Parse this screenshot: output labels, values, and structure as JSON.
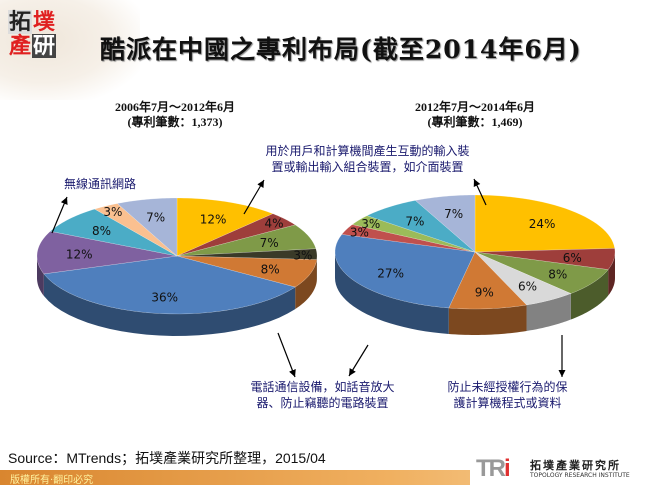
{
  "header": {
    "logo_chars": [
      "拓",
      "墣",
      "產",
      "研"
    ],
    "title": "酷派在中國之專利布局(截至2014年6月)"
  },
  "chart_data": [
    {
      "type": "pie",
      "subtitle_line1": "2006年7月～2012年6月",
      "subtitle_line2": "(專利筆數：1,373)",
      "values": [
        12,
        4,
        7,
        3,
        8,
        36,
        12,
        8,
        3,
        7
      ],
      "labels": [
        "12%",
        "4%",
        "7%",
        "3%",
        "8%",
        "36%",
        "12%",
        "8%",
        "3%",
        "7%"
      ],
      "colors": [
        "#FFC000",
        "#9E3E3B",
        "#7F9A48",
        "#3A3A28",
        "#D07934",
        "#4F7FBD",
        "#7F61A0",
        "#4BACC6",
        "#FAC090",
        "#A6B5D8"
      ]
    },
    {
      "type": "pie",
      "subtitle_line1": "2012年7月～2014年6月",
      "subtitle_line2": "(專利筆數：1,469)",
      "values": [
        24,
        6,
        8,
        6,
        9,
        27,
        3,
        3,
        7,
        7
      ],
      "labels": [
        "24%",
        "6%",
        "8%",
        "6%",
        "9%",
        "27%",
        "3%",
        "3%",
        "7%",
        "7%"
      ],
      "colors": [
        "#FFC000",
        "#9E3E3B",
        "#7F9A48",
        "#D9D9D9",
        "#D07934",
        "#4F7FBD",
        "#C0504D",
        "#9BBB59",
        "#4BACC6",
        "#A6B5D8"
      ]
    }
  ],
  "annotations": {
    "wireless": "無線通訊網路",
    "input_line1": "用於用戶和計算機間產生互動的輸入裝",
    "input_line2": "置或輸出輸入組合裝置，如介面裝置",
    "phone_line1": "電話通信設備，如話音放大",
    "phone_line2": "器、防止竊聽的電路裝置",
    "protect_line1": "防止未經授權行為的保",
    "protect_line2": "護計算機程式或資料"
  },
  "source": "Source：MTrends；拓墣產業研究所整理，2015/04",
  "footer": {
    "copyright": "版權所有‧翻印必究",
    "brand_en": "TOPOLOGY RESEARCH INSTITUTE",
    "brand_cn": "拓墣產業研究所",
    "brand_mark": "TRi"
  }
}
